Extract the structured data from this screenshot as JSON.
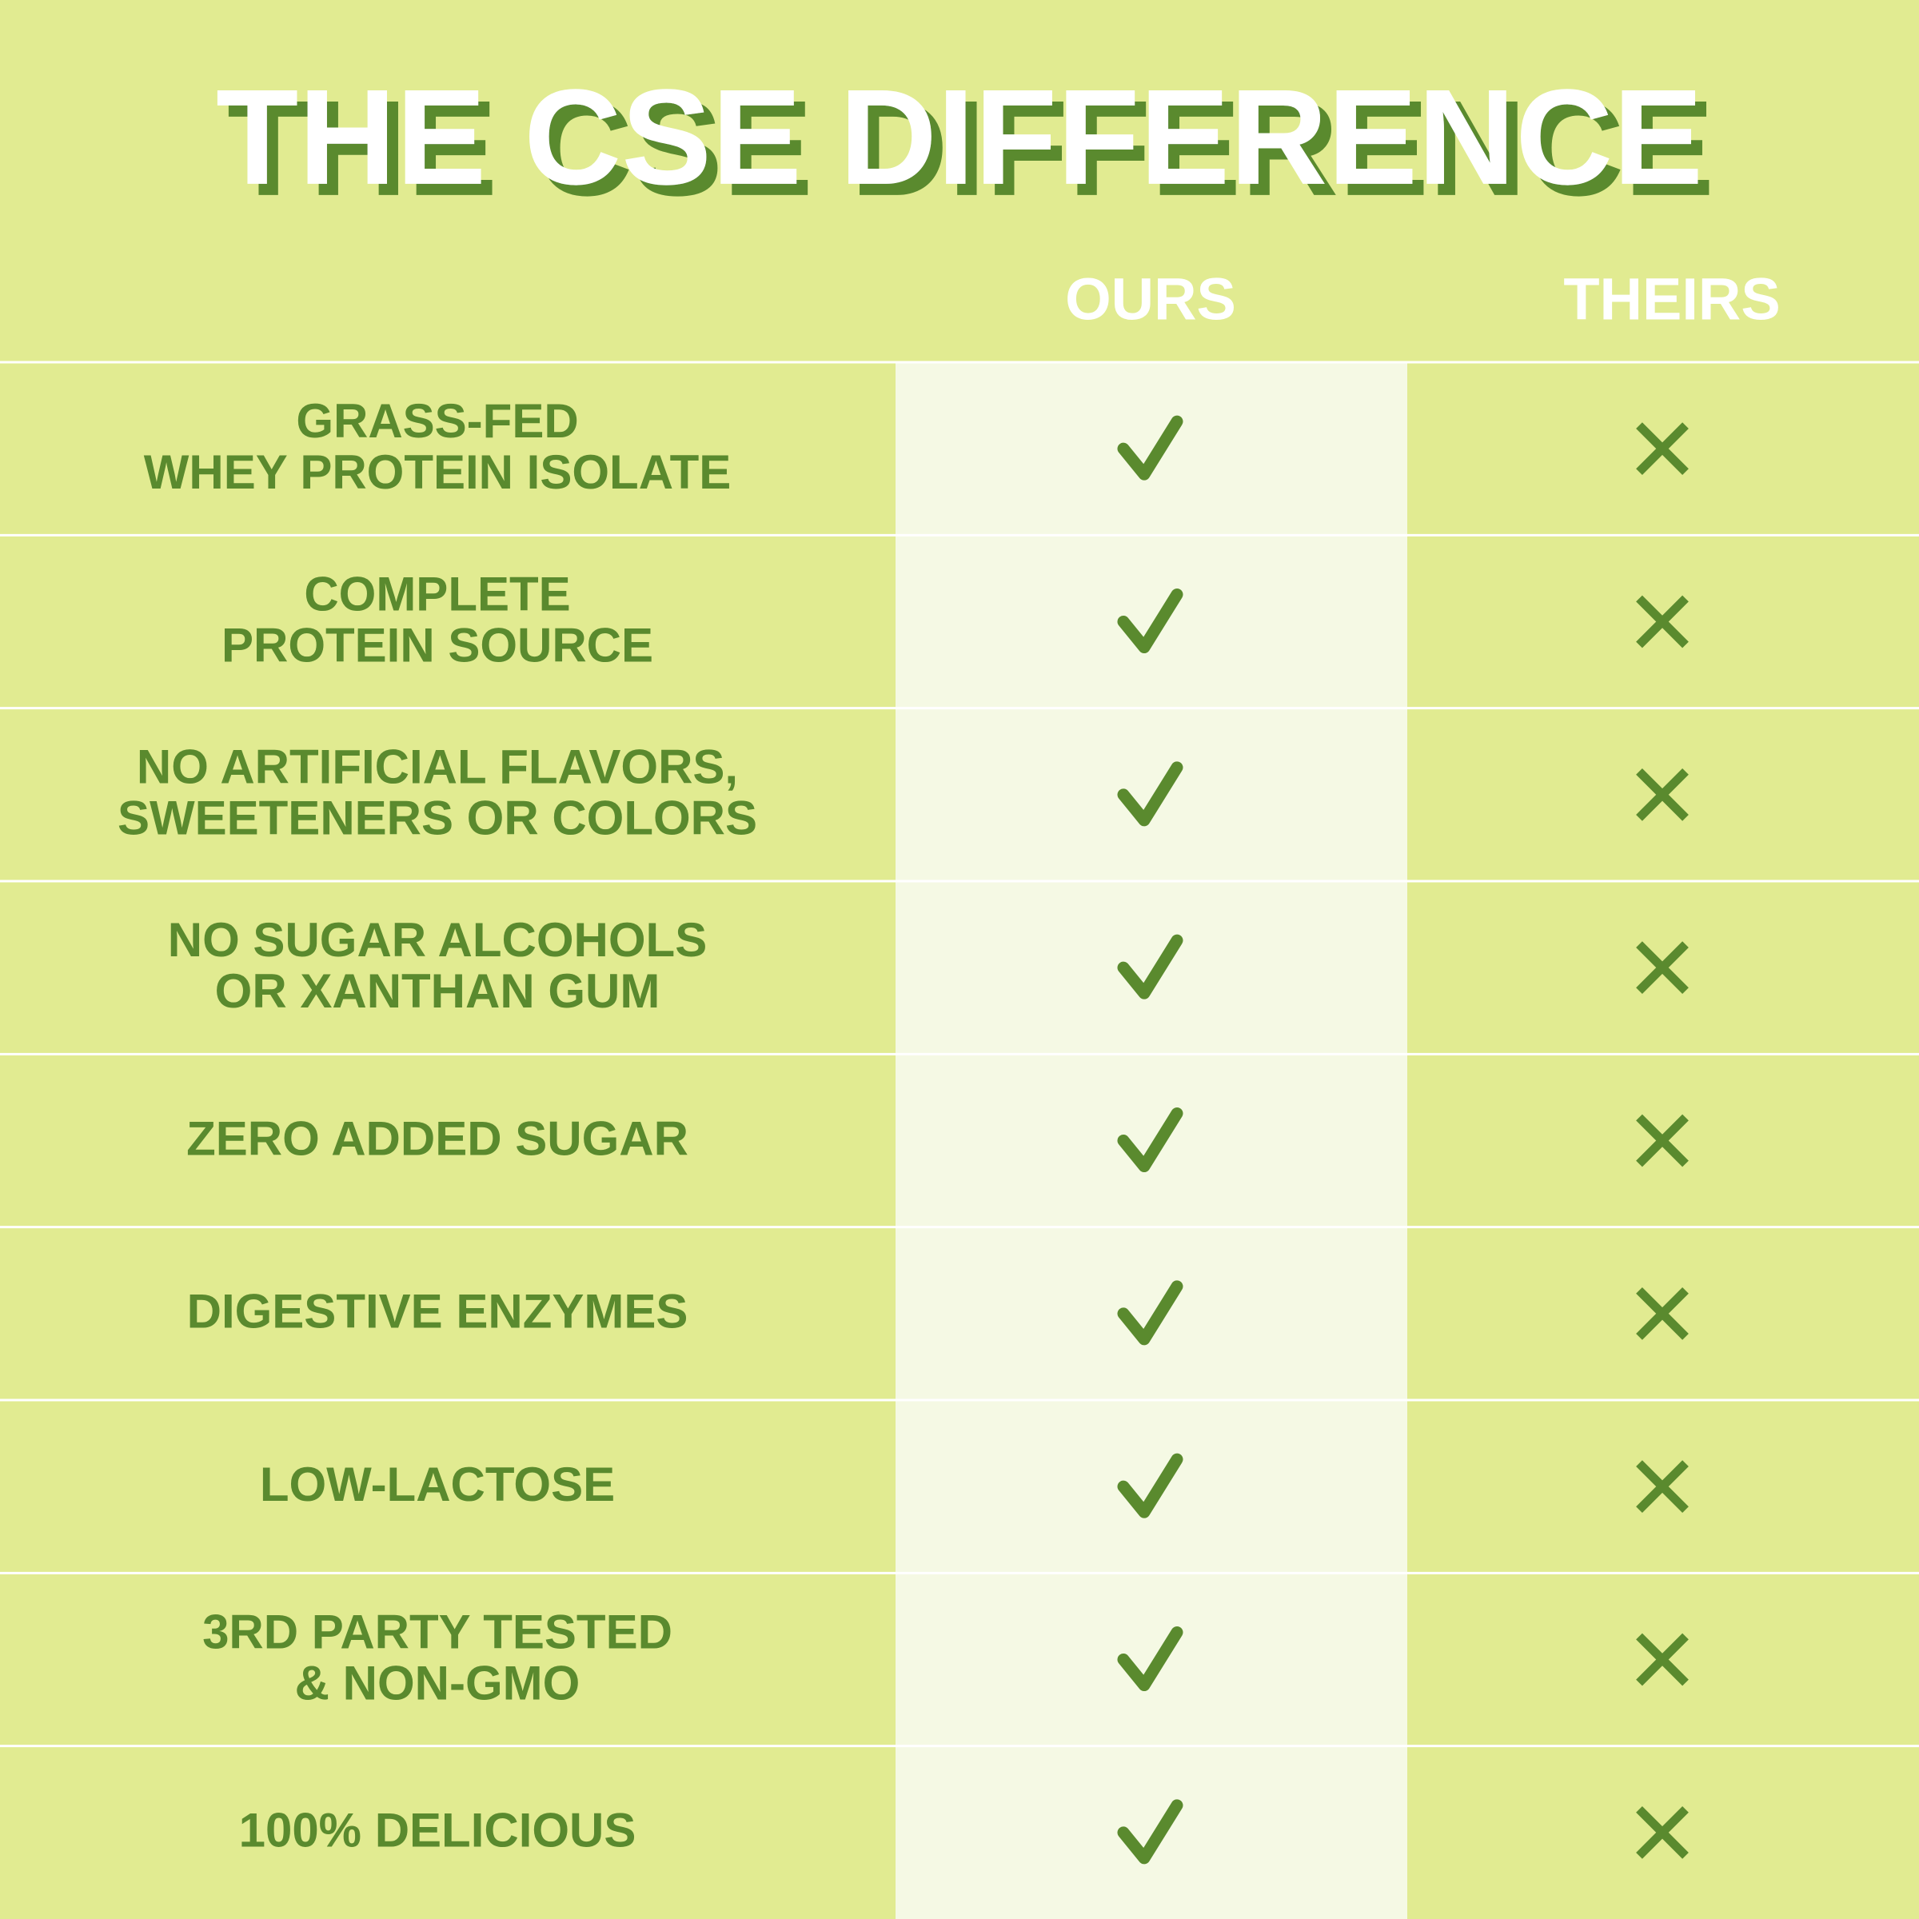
{
  "header": {
    "title": "THE CSE DIFFERENCE"
  },
  "table": {
    "columns": [
      "OURS",
      "THEIRS"
    ],
    "rows": [
      [
        "GRASS-FED",
        "WHEY PROTEIN ISOLATE"
      ],
      [
        "COMPLETE",
        "PROTEIN SOURCE"
      ],
      [
        "NO ARTIFICIAL FLAVORS,",
        "SWEETENERS OR COLORS"
      ],
      [
        "NO SUGAR ALCOHOLS",
        "OR XANTHAN GUM"
      ],
      [
        "ZERO ADDED SUGAR"
      ],
      [
        "DIGESTIVE ENZYMES"
      ],
      [
        "LOW-LACTOSE"
      ],
      [
        "3RD PARTY TESTED",
        "& NON-GMO"
      ],
      [
        "100% DELICIOUS"
      ]
    ]
  }
}
